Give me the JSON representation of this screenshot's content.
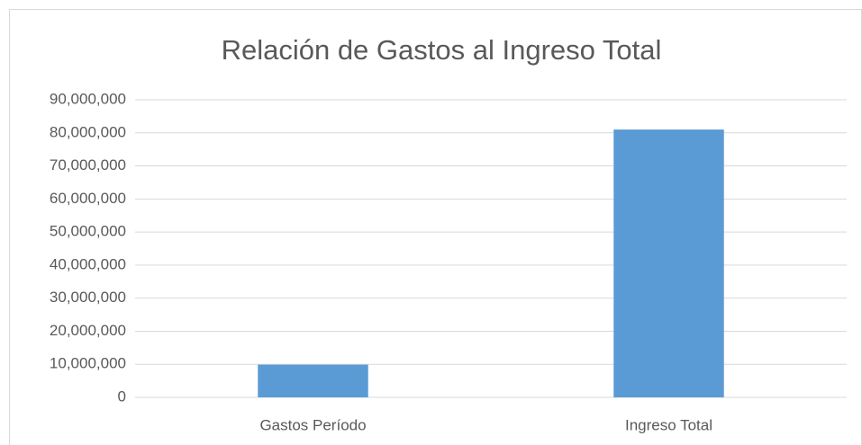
{
  "chart_data": {
    "type": "bar",
    "title": "Relación de Gastos al Ingreso Total",
    "categories": [
      "Gastos Período",
      "Ingreso Total"
    ],
    "values": [
      9900000,
      81000000
    ],
    "color": "#5b9bd5",
    "ylim": [
      0,
      90000000
    ],
    "yticks": [
      0,
      {
        "value": 10000000,
        "label": "10,000,000"
      },
      {
        "value": 20000000,
        "label": "20,000,000"
      },
      {
        "value": 30000000,
        "label": "30,000,000"
      },
      {
        "value": 40000000,
        "label": "40,000,000"
      },
      {
        "value": 50000000,
        "label": "50,000,000"
      },
      {
        "value": 60000000,
        "label": "60,000,000"
      },
      {
        "value": 70000000,
        "label": "70,000,000"
      },
      {
        "value": 80000000,
        "label": "80,000,000"
      },
      {
        "value": 90000000,
        "label": "90,000,000"
      }
    ],
    "grid": true
  }
}
